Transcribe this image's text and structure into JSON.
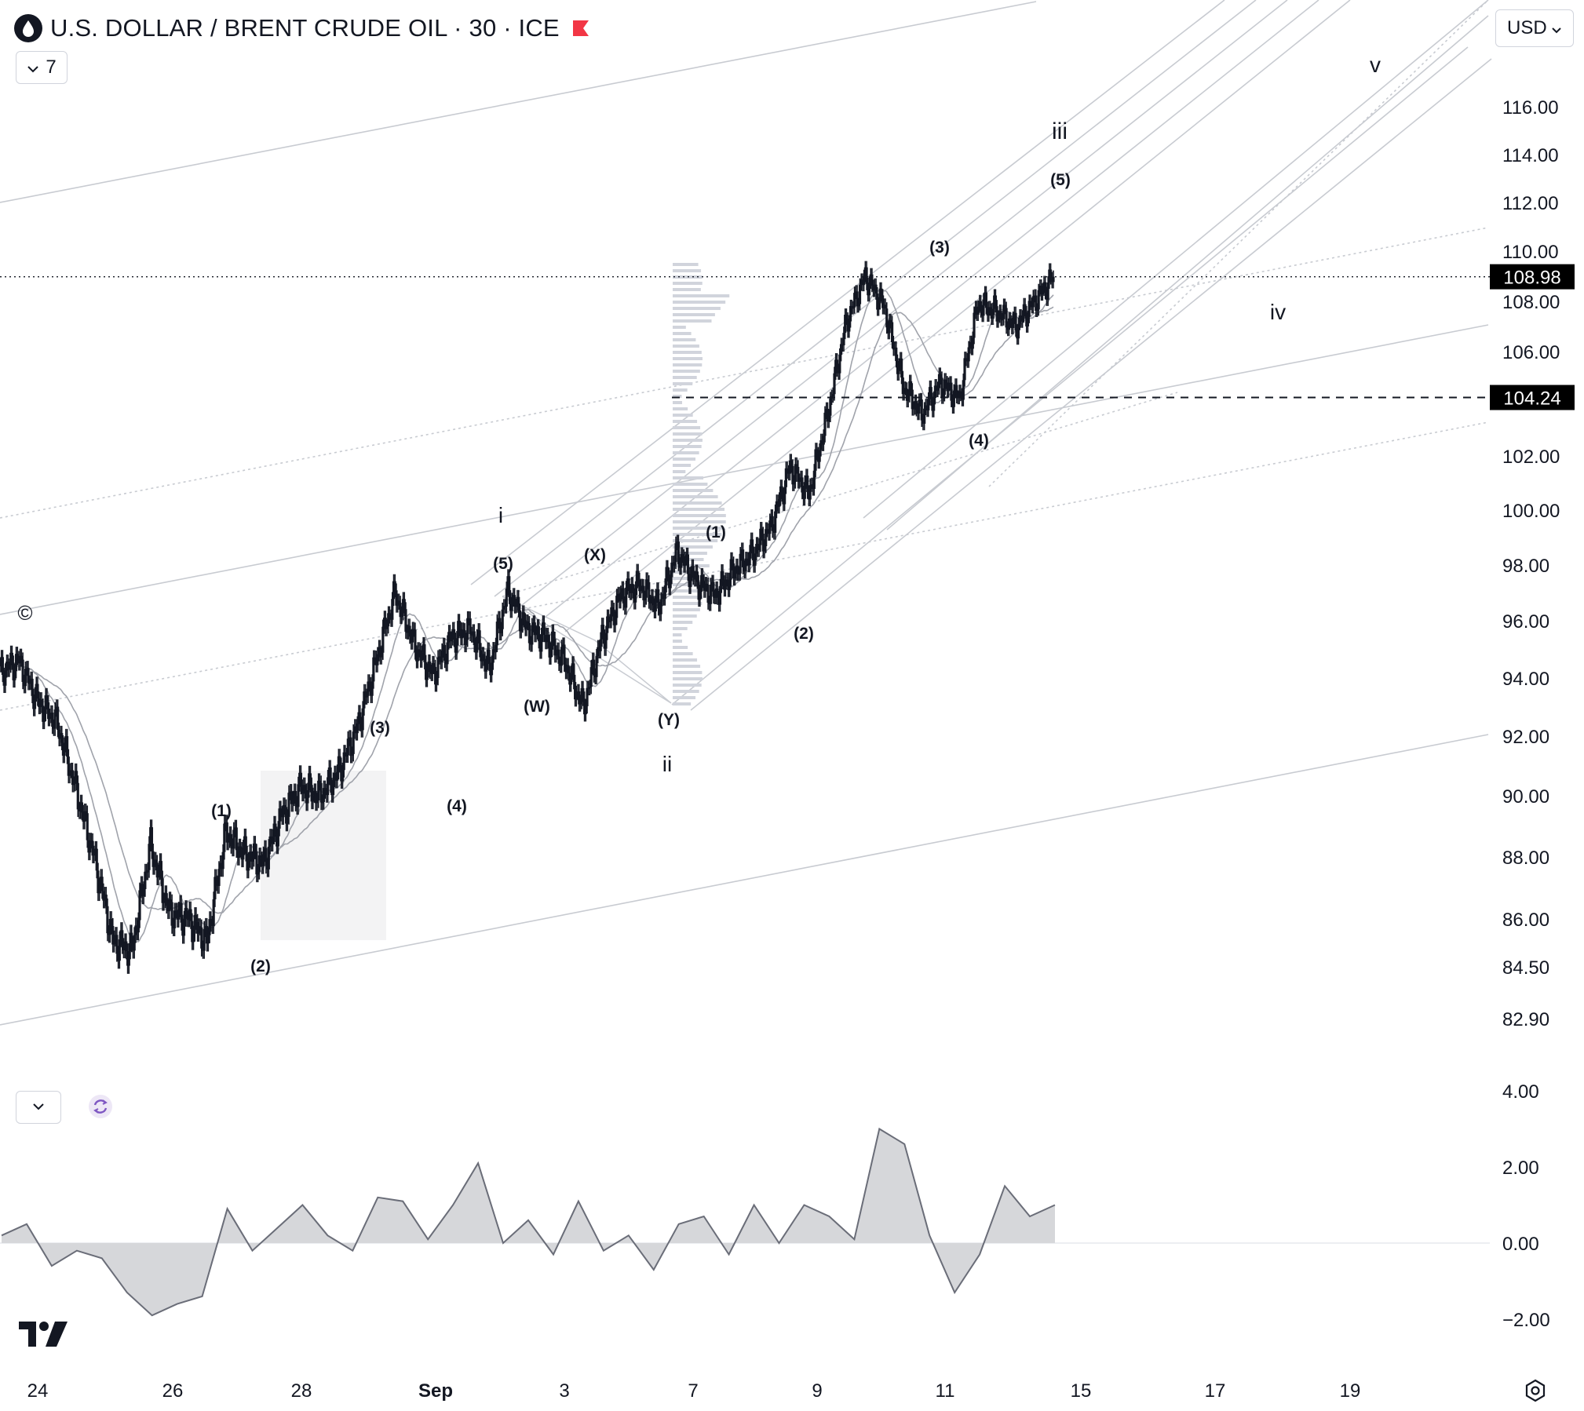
{
  "header": {
    "title": "U.S. DOLLAR / BRENT CRUDE OIL · 30 · ICE",
    "collapse_label": "7",
    "currency": "USD"
  },
  "icons": {
    "symbol": "oil-drop-icon",
    "flag": "flag-icon",
    "chevron": "chevron-down-icon",
    "refresh": "refresh-icon",
    "logo": "tradingview-logo",
    "settings": "settings-icon"
  },
  "colors": {
    "candles": "#131722",
    "moving_averages": "#a0a3ab",
    "trendlines": "#c8cbd1",
    "oscillator_fill": "#d6d7da",
    "label_bg": "#000000",
    "flag": "#f23645",
    "refresh": "#7e57c2"
  },
  "chart_data": [
    {
      "type": "candlestick",
      "title": "U.S. DOLLAR / BRENT CRUDE OIL · 30 · ICE",
      "x_tick_labels": [
        "24",
        "26",
        "28",
        "Sep",
        "3",
        "7",
        "9",
        "11",
        "15",
        "17",
        "19"
      ],
      "y_tick_labels": [
        "116.00",
        "114.00",
        "112.00",
        "110.00",
        "108.00",
        "106.00",
        "102.00",
        "100.00",
        "98.00",
        "96.00",
        "94.00",
        "92.00",
        "90.00",
        "88.00",
        "86.00",
        "84.50",
        "82.90"
      ],
      "last_price_label": "108.98",
      "level_label": "104.24",
      "price_path": [
        [
          "24",
          94.2
        ],
        [
          "24.4",
          94.6
        ],
        [
          "24.8",
          93.2
        ],
        [
          "25.2",
          92.5
        ],
        [
          "25.6",
          90.3
        ],
        [
          "25.9",
          88.0
        ],
        [
          "26.1",
          85.3
        ],
        [
          "26.3",
          85.0
        ],
        [
          "26.7",
          88.4
        ],
        [
          "26.9",
          86.2
        ],
        [
          "27.2",
          86.0
        ],
        [
          "27.4",
          85.3
        ],
        [
          "27.7",
          88.8
        ],
        [
          "28.1",
          88.1
        ],
        [
          "28.6",
          87.8
        ],
        [
          "28.9",
          89.4
        ],
        [
          "29.2",
          90.3
        ],
        [
          "29.6",
          90.0
        ],
        [
          "30",
          90.8
        ],
        [
          "30.4",
          92.3
        ],
        [
          "30.8",
          94.6
        ],
        [
          "31",
          97.0
        ],
        [
          "31.3",
          95.2
        ],
        [
          "31.5",
          94.1
        ],
        [
          "31.8",
          95.4
        ],
        [
          "Sep 1",
          95.7
        ],
        [
          "Sep 1.2",
          94.3
        ],
        [
          "Sep 1.4",
          97.1
        ],
        [
          "Sep 1.6",
          95.7
        ],
        [
          "Sep 2",
          95.4
        ],
        [
          "Sep 2.3",
          94.6
        ],
        [
          "Sep 2.5",
          93.0
        ],
        [
          "Sep 2.8",
          95.4
        ],
        [
          "Sep 3.2",
          96.9
        ],
        [
          "Sep 3.6",
          97.3
        ],
        [
          "Sep 4",
          96.5
        ],
        [
          "Sep 4.4",
          98.5
        ],
        [
          "Sep 4.8",
          97.4
        ],
        [
          "Sep 5.2",
          96.9
        ],
        [
          "Sep 5.5",
          97.8
        ],
        [
          "Sep 6",
          98.4
        ],
        [
          "Sep 6.4",
          99.4
        ],
        [
          "Sep 6.7",
          101.6
        ],
        [
          "Sep 7",
          100.6
        ],
        [
          "Sep 7.2",
          103.6
        ],
        [
          "Sep 7.5",
          107.2
        ],
        [
          "Sep 7.8",
          109.0
        ],
        [
          "Sep 8",
          107.8
        ],
        [
          "Sep 8.2",
          104.7
        ],
        [
          "Sep 8.5",
          103.6
        ],
        [
          "Sep 8.8",
          104.8
        ],
        [
          "Sep 9",
          104.2
        ],
        [
          "Sep 9.3",
          107.9
        ],
        [
          "Sep 9.6",
          107.6
        ],
        [
          "Sep 9.8",
          107.0
        ],
        [
          "Sep 10",
          108.0
        ],
        [
          "Sep 10.1",
          108.98
        ]
      ],
      "wave_labels": [
        "©",
        "(1)",
        "(2)",
        "(3)",
        "(4)",
        "(5)",
        "i",
        "(W)",
        "(X)",
        "(Y)",
        "ii",
        "(1)",
        "(2)",
        "(3)",
        "(4)",
        "(5)",
        "iii",
        "iv",
        "v"
      ]
    },
    {
      "type": "area",
      "y_tick_labels": [
        "4.00",
        "2.00",
        "0.00",
        "−2.00"
      ],
      "ylim": [
        -2.0,
        4.0
      ],
      "path_values": [
        0.2,
        0.5,
        -0.6,
        -0.2,
        -0.4,
        -1.3,
        -1.9,
        -1.6,
        -1.4,
        0.9,
        -0.2,
        0.4,
        1.0,
        0.2,
        -0.2,
        1.2,
        1.1,
        0.1,
        1.0,
        2.1,
        0.0,
        0.6,
        -0.3,
        1.1,
        -0.2,
        0.2,
        -0.7,
        0.5,
        0.7,
        -0.3,
        1.0,
        0.0,
        1.0,
        0.7,
        0.1,
        3.0,
        2.6,
        0.2,
        -1.3,
        -0.3,
        1.5,
        0.7,
        1.0
      ]
    }
  ]
}
